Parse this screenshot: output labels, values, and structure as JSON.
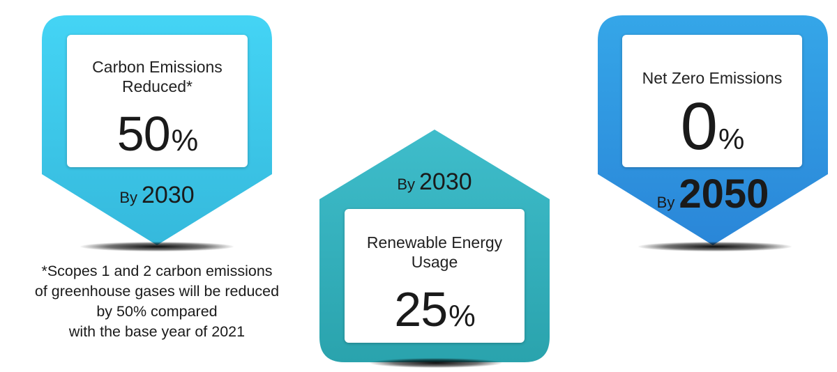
{
  "colors": {
    "cyan_top": "#44d4f5",
    "cyan_bottom": "#35b9dc",
    "teal_top": "#3fbdcb",
    "teal_bottom": "#2aa3ad",
    "blue_top": "#35a6e8",
    "blue_bottom": "#2a86d8"
  },
  "badges": {
    "carbon": {
      "title_line1": "Carbon Emissions",
      "title_line2": "Reduced*",
      "value": "50",
      "unit": "%",
      "by_word": "By",
      "year": "2030"
    },
    "renewable": {
      "by_word": "By",
      "year": "2030",
      "title_line1": "Renewable Energy",
      "title_line2": "Usage",
      "value": "25",
      "unit": "%"
    },
    "netzero": {
      "title": "Net Zero Emissions",
      "value": "0",
      "unit": "%",
      "by_word": "By",
      "year": "2050"
    }
  },
  "footnote": {
    "line1": "*Scopes 1 and 2 carbon emissions",
    "line2": "of greenhouse gases will be reduced",
    "line3": "by 50% compared",
    "line4": "with the base year of 2021"
  }
}
